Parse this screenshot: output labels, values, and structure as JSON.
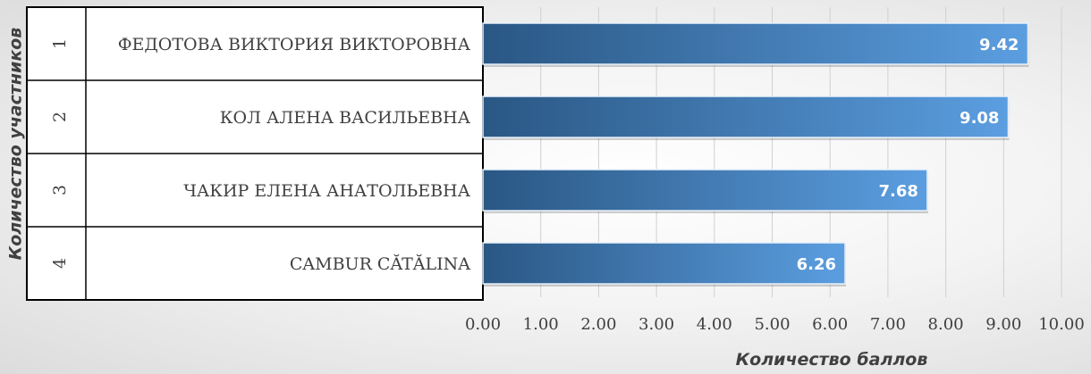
{
  "chart_data": {
    "type": "bar",
    "orientation": "horizontal",
    "categories": [
      {
        "index": "1",
        "name": "ФЕДОТОВА ВИКТОРИЯ ВИКТОРОВНА"
      },
      {
        "index": "2",
        "name": "КОЛ АЛЕНА ВАСИЛЬЕВНА"
      },
      {
        "index": "3",
        "name": "ЧАКИР ЕЛЕНА АНАТОЛЬЕВНА"
      },
      {
        "index": "4",
        "name": "CAMBUR CĂTĂLINA"
      }
    ],
    "values": [
      9.42,
      9.08,
      7.68,
      6.26
    ],
    "data_labels": [
      "9.42",
      "9.08",
      "7.68",
      "6.26"
    ],
    "xlabel": "Количество баллов",
    "ylabel": "Количество участников",
    "xlim": [
      0,
      10
    ],
    "x_ticks": [
      "0.00",
      "1.00",
      "2.00",
      "3.00",
      "4.00",
      "5.00",
      "6.00",
      "7.00",
      "8.00",
      "9.00",
      "10.00"
    ],
    "grid": true,
    "colors": {
      "bar_dark": "#2a5784",
      "bar_light": "#5b9ee0",
      "bar_label": "#ffffff",
      "gridline": "#d0d0d0",
      "axis_text": "#404040",
      "category_border": "#000000"
    }
  }
}
